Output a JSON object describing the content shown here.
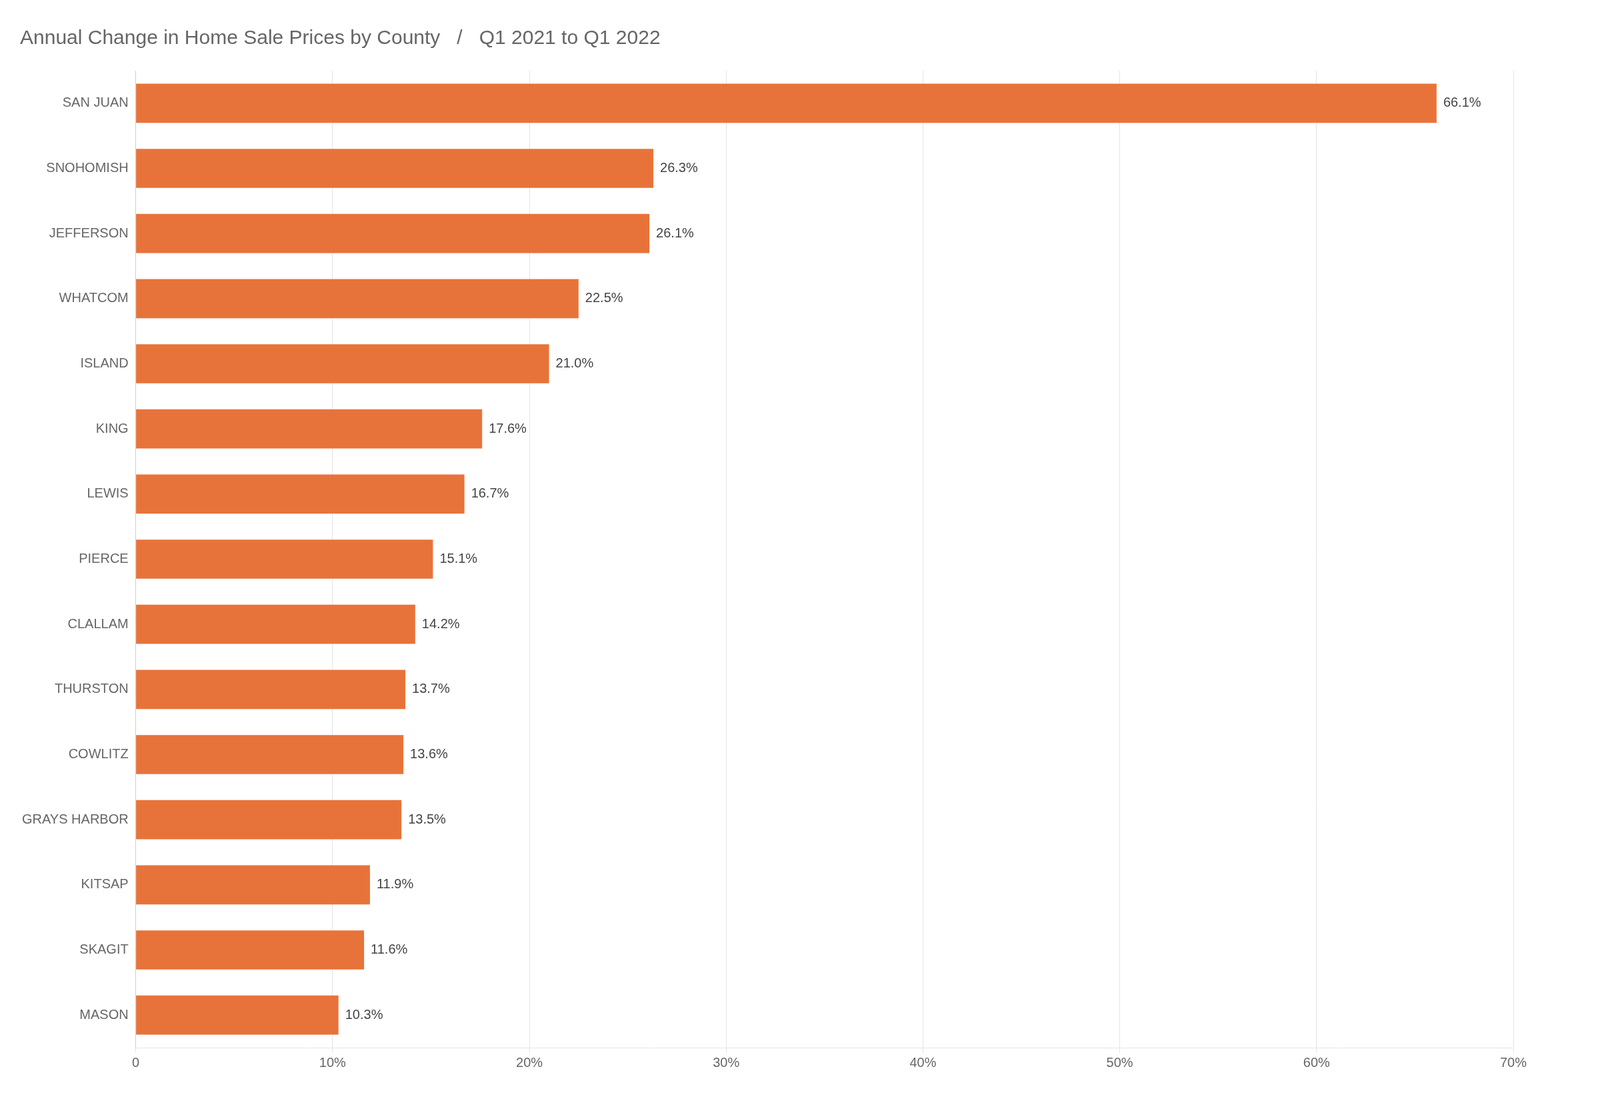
{
  "chart_data": {
    "type": "bar",
    "orientation": "horizontal",
    "title": "Annual Change in Home Sale Prices by County   /   Q1 2021 to Q1 2022",
    "categories": [
      "SAN JUAN",
      "SNOHOMISH",
      "JEFFERSON",
      "WHATCOM",
      "ISLAND",
      "KING",
      "LEWIS",
      "PIERCE",
      "CLALLAM",
      "THURSTON",
      "COWLITZ",
      "GRAYS HARBOR",
      "KITSAP",
      "SKAGIT",
      "MASON"
    ],
    "values": [
      66.1,
      26.3,
      26.1,
      22.5,
      21.0,
      17.6,
      16.7,
      15.1,
      14.2,
      13.7,
      13.6,
      13.5,
      11.9,
      11.6,
      10.3
    ],
    "value_labels": [
      "66.1%",
      "26.3%",
      "26.1%",
      "22.5%",
      "21.0%",
      "17.6%",
      "16.7%",
      "15.1%",
      "14.2%",
      "13.7%",
      "13.6%",
      "13.5%",
      "11.9%",
      "11.6%",
      "10.3%"
    ],
    "data_labels": true,
    "color": "#E8733A",
    "xlim": [
      0,
      70
    ],
    "xticks": [
      0,
      {
        "value": 10,
        "label": "10%"
      },
      {
        "value": 20,
        "label": "20%"
      },
      {
        "value": 30,
        "label": "30%"
      },
      {
        "value": 40,
        "label": "40%"
      },
      {
        "value": 50,
        "label": "50%"
      },
      {
        "value": 60,
        "label": "60%"
      },
      {
        "value": 70,
        "label": "70%"
      }
    ],
    "grid": true
  }
}
